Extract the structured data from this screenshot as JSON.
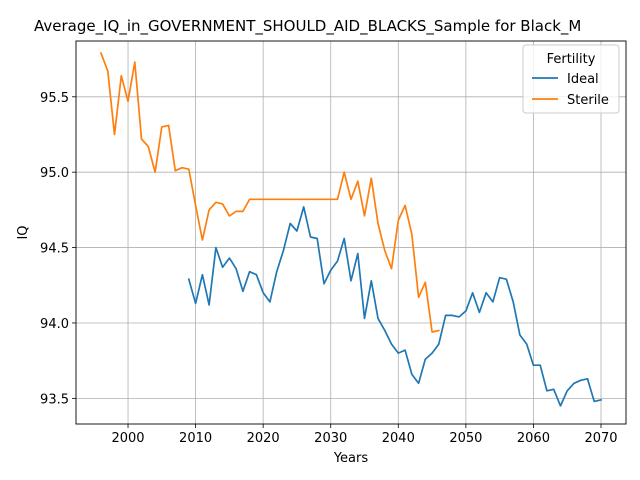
{
  "chart_data": {
    "type": "line",
    "title": "Average_IQ_in_GOVERNMENT_SHOULD_AID_BLACKS_Sample for Black_M",
    "xlabel": "Years",
    "ylabel": "IQ",
    "xlim": [
      1992.3,
      2073.7
    ],
    "ylim": [
      93.33,
      95.87
    ],
    "xticks": [
      2000,
      2010,
      2020,
      2030,
      2040,
      2050,
      2060,
      2070
    ],
    "yticks": [
      93.5,
      94.0,
      94.5,
      95.0,
      95.5
    ],
    "ytick_labels": [
      "93.5",
      "94.0",
      "94.5",
      "95.0",
      "95.5"
    ],
    "grid": true,
    "legend": {
      "title": "Fertility",
      "position": "top-right"
    },
    "series": [
      {
        "name": "Ideal",
        "color": "#1f77b4",
        "x": [
          2009,
          2010,
          2011,
          2012,
          2013,
          2014,
          2015,
          2016,
          2017,
          2018,
          2019,
          2020,
          2021,
          2022,
          2023,
          2024,
          2025,
          2026,
          2027,
          2028,
          2029,
          2030,
          2031,
          2032,
          2033,
          2034,
          2035,
          2036,
          2037,
          2038,
          2039,
          2040,
          2041,
          2042,
          2043,
          2044,
          2045,
          2046,
          2047,
          2048,
          2049,
          2050,
          2051,
          2052,
          2053,
          2054,
          2055,
          2056,
          2057,
          2058,
          2059,
          2060,
          2061,
          2062,
          2063,
          2064,
          2065,
          2066,
          2067,
          2068,
          2069,
          2070
        ],
        "y": [
          94.29,
          94.13,
          94.32,
          94.12,
          94.5,
          94.37,
          94.43,
          94.36,
          94.21,
          94.34,
          94.32,
          94.2,
          94.14,
          94.34,
          94.48,
          94.66,
          94.61,
          94.77,
          94.57,
          94.56,
          94.26,
          94.35,
          94.41,
          94.56,
          94.28,
          94.46,
          94.03,
          94.28,
          94.03,
          93.95,
          93.86,
          93.8,
          93.82,
          93.66,
          93.6,
          93.76,
          93.8,
          93.86,
          94.05,
          94.05,
          94.04,
          94.08,
          94.2,
          94.07,
          94.2,
          94.14,
          94.3,
          94.29,
          94.14,
          93.92,
          93.86,
          93.72,
          93.72,
          93.55,
          93.56,
          93.45,
          93.55,
          93.6,
          93.62,
          93.63,
          93.48,
          93.49
        ]
      },
      {
        "name": "Sterile",
        "color": "#ff7f0e",
        "x": [
          1996,
          1997,
          1998,
          1999,
          2000,
          2001,
          2002,
          2003,
          2004,
          2005,
          2006,
          2007,
          2008,
          2009,
          2010,
          2011,
          2012,
          2013,
          2014,
          2015,
          2016,
          2017,
          2018,
          2019,
          2020,
          2021,
          2022,
          2023,
          2024,
          2025,
          2026,
          2027,
          2028,
          2029,
          2030,
          2031,
          2032,
          2033,
          2034,
          2035,
          2036,
          2037,
          2038,
          2039,
          2040,
          2041,
          2042,
          2043,
          2044,
          2045,
          2046
        ],
        "y": [
          95.79,
          95.67,
          95.25,
          95.64,
          95.47,
          95.73,
          95.22,
          95.17,
          95.0,
          95.3,
          95.31,
          95.01,
          95.03,
          95.02,
          94.78,
          94.55,
          94.75,
          94.8,
          94.79,
          94.71,
          94.74,
          94.74,
          94.82,
          94.82,
          94.82,
          94.82,
          94.82,
          94.82,
          94.82,
          94.82,
          94.82,
          94.82,
          94.82,
          94.82,
          94.82,
          94.82,
          95.0,
          94.82,
          94.94,
          94.71,
          94.96,
          94.66,
          94.48,
          94.36,
          94.68,
          94.78,
          94.59,
          94.17,
          94.27,
          93.94,
          93.95
        ]
      }
    ]
  }
}
